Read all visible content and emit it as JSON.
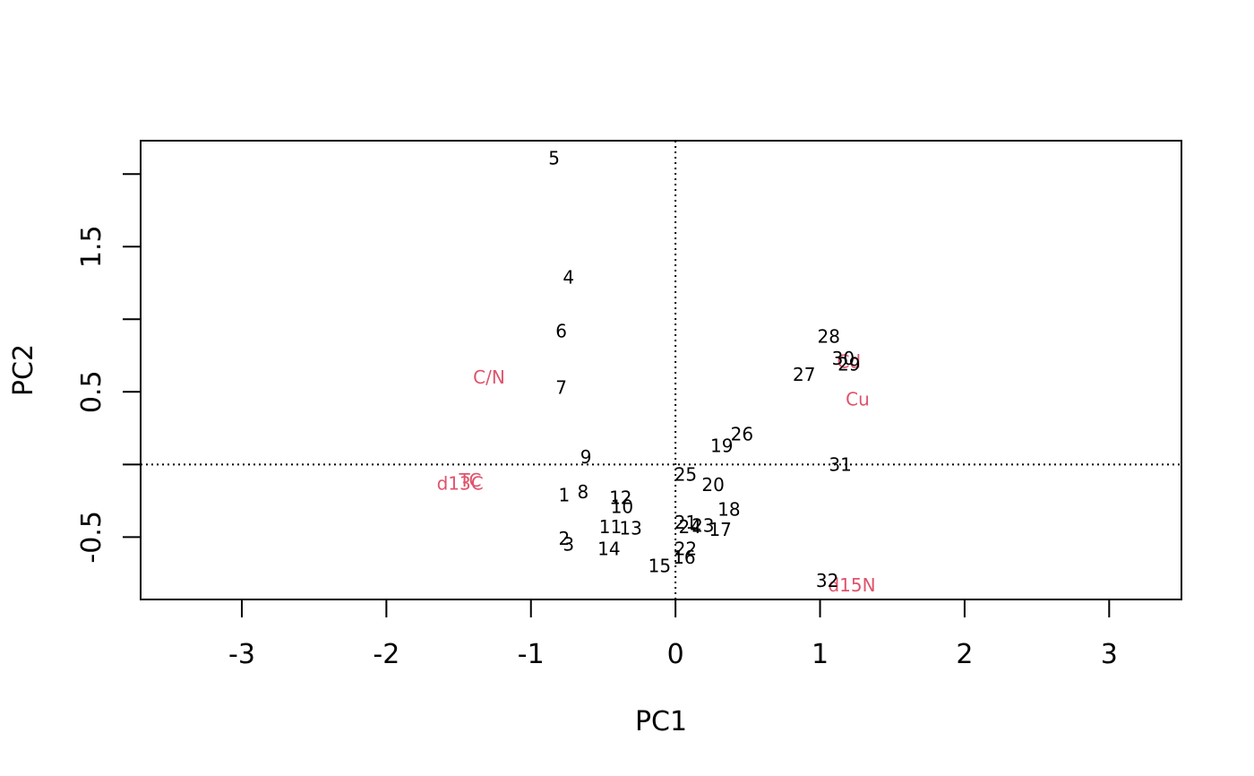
{
  "chart_data": {
    "type": "scatter",
    "title": "",
    "xlabel": "PC1",
    "ylabel": "PC2",
    "xlim": [
      -3.7,
      3.5
    ],
    "ylim": [
      -0.93,
      2.23
    ],
    "x_ticks": [
      {
        "value": -3,
        "label": "-3"
      },
      {
        "value": -2,
        "label": "-2"
      },
      {
        "value": -1,
        "label": "-1"
      },
      {
        "value": 0,
        "label": "0"
      },
      {
        "value": 1,
        "label": "1"
      },
      {
        "value": 2,
        "label": "2"
      },
      {
        "value": 3,
        "label": "3"
      }
    ],
    "y_ticks": [
      {
        "value": -0.5,
        "label": "-0.5"
      },
      {
        "value": 0,
        "label": ""
      },
      {
        "value": 0.5,
        "label": "0.5"
      },
      {
        "value": 1.0,
        "label": ""
      },
      {
        "value": 1.5,
        "label": "1.5"
      },
      {
        "value": 2.0,
        "label": ""
      }
    ],
    "reference_lines": {
      "x": 0,
      "y": 0,
      "style": "dotted"
    },
    "grid": false,
    "label_color_observations": "#000000",
    "label_color_variables": "#df536b",
    "observations": [
      {
        "label": "1",
        "x": -0.77,
        "y": -0.21
      },
      {
        "label": "2",
        "x": -0.77,
        "y": -0.51
      },
      {
        "label": "3",
        "x": -0.74,
        "y": -0.55
      },
      {
        "label": "4",
        "x": -0.74,
        "y": 1.29
      },
      {
        "label": "5",
        "x": -0.84,
        "y": 2.11
      },
      {
        "label": "6",
        "x": -0.79,
        "y": 0.92
      },
      {
        "label": "7",
        "x": -0.79,
        "y": 0.53
      },
      {
        "label": "8",
        "x": -0.64,
        "y": -0.19
      },
      {
        "label": "9",
        "x": -0.62,
        "y": 0.05
      },
      {
        "label": "10",
        "x": -0.37,
        "y": -0.29
      },
      {
        "label": "11",
        "x": -0.45,
        "y": -0.43
      },
      {
        "label": "12",
        "x": -0.38,
        "y": -0.23
      },
      {
        "label": "13",
        "x": -0.31,
        "y": -0.44
      },
      {
        "label": "14",
        "x": -0.46,
        "y": -0.58
      },
      {
        "label": "15",
        "x": -0.11,
        "y": -0.7
      },
      {
        "label": "16",
        "x": 0.06,
        "y": -0.64
      },
      {
        "label": "17",
        "x": 0.31,
        "y": -0.45
      },
      {
        "label": "18",
        "x": 0.37,
        "y": -0.31
      },
      {
        "label": "19",
        "x": 0.32,
        "y": 0.13
      },
      {
        "label": "20",
        "x": 0.26,
        "y": -0.14
      },
      {
        "label": "21",
        "x": 0.07,
        "y": -0.4
      },
      {
        "label": "22",
        "x": 0.07,
        "y": -0.58
      },
      {
        "label": "23",
        "x": 0.19,
        "y": -0.42
      },
      {
        "label": "24",
        "x": 0.1,
        "y": -0.43
      },
      {
        "label": "25",
        "x": 0.07,
        "y": -0.07
      },
      {
        "label": "26",
        "x": 0.46,
        "y": 0.21
      },
      {
        "label": "27",
        "x": 0.89,
        "y": 0.62
      },
      {
        "label": "28",
        "x": 1.06,
        "y": 0.88
      },
      {
        "label": "29",
        "x": 1.2,
        "y": 0.69
      },
      {
        "label": "30",
        "x": 1.16,
        "y": 0.73
      },
      {
        "label": "31",
        "x": 1.14,
        "y": 0.0
      },
      {
        "label": "32",
        "x": 1.05,
        "y": -0.8
      }
    ],
    "variables": [
      {
        "label": "C/N",
        "x": -1.29,
        "y": 0.6
      },
      {
        "label": "TC",
        "x": -1.42,
        "y": -0.11
      },
      {
        "label": "d13C",
        "x": -1.49,
        "y": -0.13
      },
      {
        "label": "Cu",
        "x": 1.26,
        "y": 0.45
      },
      {
        "label": "d15N",
        "x": 1.22,
        "y": -0.83
      },
      {
        "label": "Cd",
        "x": 1.2,
        "y": 0.71
      }
    ]
  }
}
